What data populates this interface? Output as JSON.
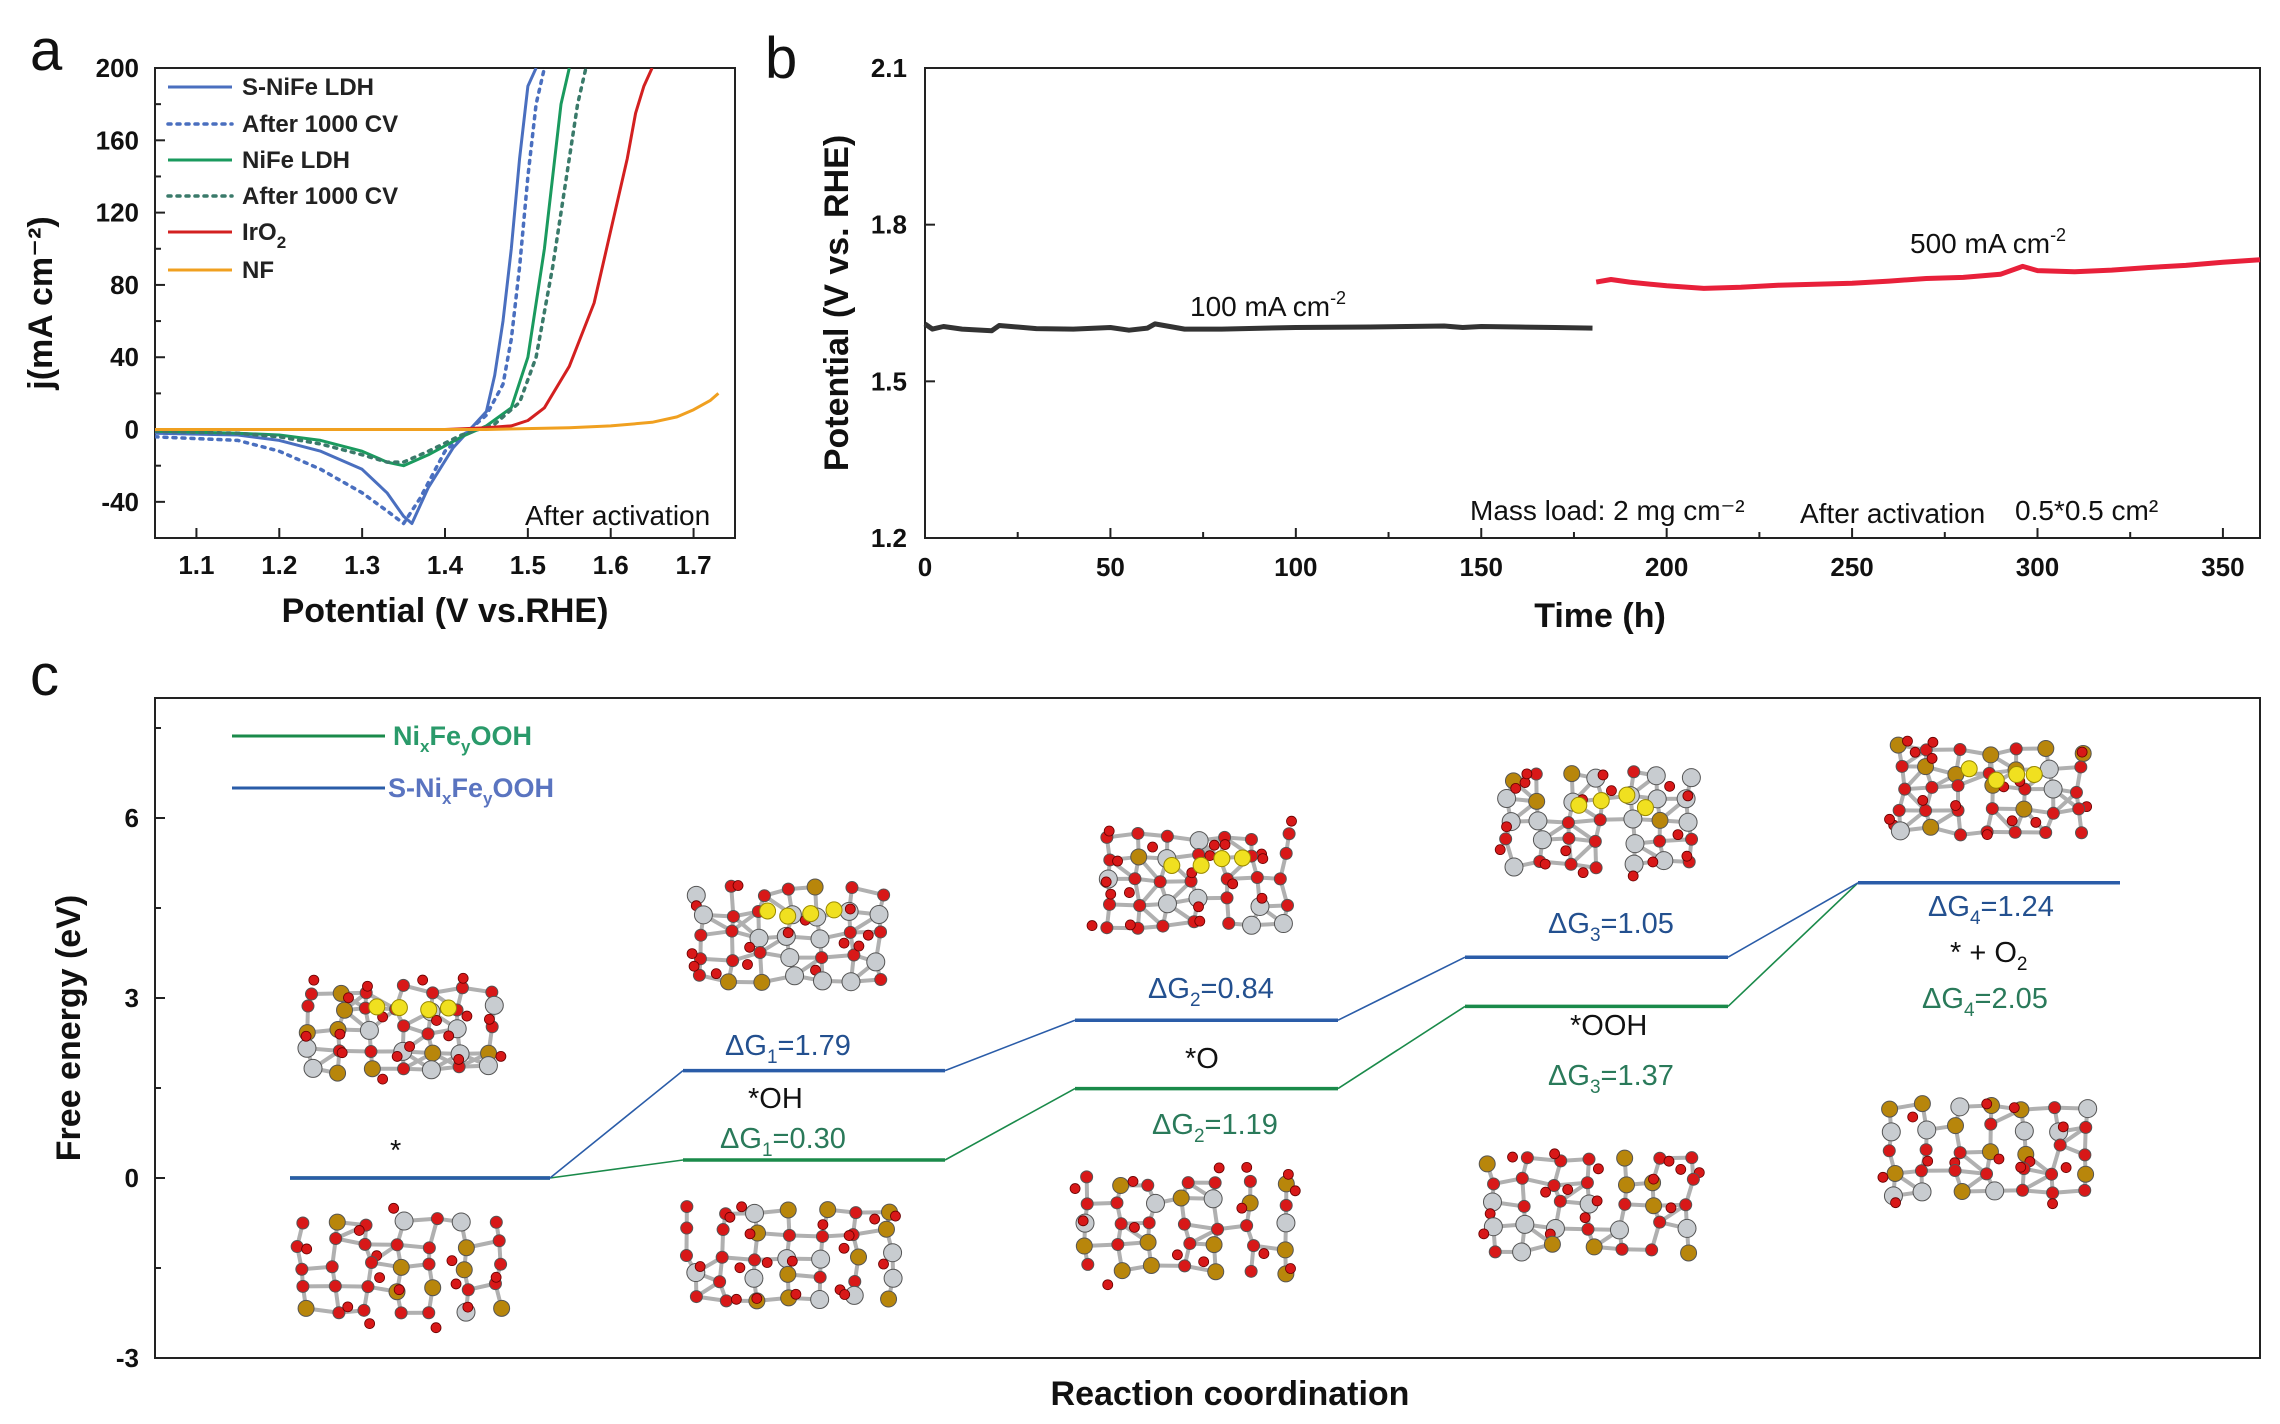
{
  "panels": {
    "a": "a",
    "b": "b",
    "c": "c"
  },
  "colors": {
    "s_nife": "#4a6fbf",
    "nife": "#1a9a5e",
    "iro2": "#d32020",
    "nf": "#f0a020",
    "stability_100": "#333333",
    "stability_500": "#e8203a",
    "energy_ni": "#1a8a4a",
    "energy_s": "#2a5ca8",
    "dg_blue": "#23508f",
    "dg_green": "#2a7a5a",
    "atom_o": "#d81818",
    "atom_ni": "#c8ccd0",
    "atom_fe": "#b8860b",
    "atom_s": "#f0e020"
  },
  "chart_data": [
    {
      "id": "a",
      "type": "line",
      "title": "",
      "xlabel": "Potential (V vs.RHE)",
      "ylabel": "j(mA cm⁻²)",
      "xlim": [
        1.05,
        1.75
      ],
      "ylim": [
        -60,
        200
      ],
      "xticks": [
        1.1,
        1.2,
        1.3,
        1.4,
        1.5,
        1.6,
        1.7
      ],
      "yticks": [
        -40,
        0,
        40,
        80,
        120,
        160,
        200
      ],
      "xtick_labels": [
        "1.1",
        "1.2",
        "1.3",
        "1.4",
        "1.5",
        "1.6",
        "1.7"
      ],
      "ytick_labels": [
        "-40",
        "0",
        "40",
        "80",
        "120",
        "160",
        "200"
      ],
      "annotation": "After activation",
      "legend_position": "top-left",
      "series": [
        {
          "name": "S-NiFe LDH",
          "label_main": "S-NiFe LDH",
          "label_sub": "",
          "style": "solid",
          "color": "#4a6fbf",
          "x": [
            1.05,
            1.15,
            1.2,
            1.25,
            1.3,
            1.33,
            1.35,
            1.36,
            1.38,
            1.41,
            1.43,
            1.45,
            1.46,
            1.47,
            1.48,
            1.49,
            1.5,
            1.51
          ],
          "y": [
            -2,
            -3,
            -6,
            -12,
            -22,
            -35,
            -48,
            -52,
            -32,
            -10,
            0,
            10,
            30,
            60,
            100,
            150,
            190,
            200
          ]
        },
        {
          "name": "After 1000 CV",
          "label_main": "After 1000 CV",
          "label_sub": "",
          "style": "dotted",
          "color": "#4a6fbf",
          "x": [
            1.05,
            1.15,
            1.2,
            1.25,
            1.3,
            1.33,
            1.35,
            1.37,
            1.4,
            1.43,
            1.45,
            1.47,
            1.48,
            1.49,
            1.5,
            1.51,
            1.52
          ],
          "y": [
            -4,
            -6,
            -12,
            -22,
            -35,
            -45,
            -52,
            -38,
            -12,
            0,
            8,
            25,
            50,
            90,
            140,
            180,
            200
          ]
        },
        {
          "name": "NiFe LDH",
          "label_main": "NiFe LDH",
          "label_sub": "",
          "style": "solid",
          "color": "#1a9a5e",
          "x": [
            1.05,
            1.15,
            1.2,
            1.25,
            1.3,
            1.33,
            1.35,
            1.38,
            1.42,
            1.45,
            1.48,
            1.5,
            1.52,
            1.53,
            1.54,
            1.55
          ],
          "y": [
            -1,
            -2,
            -3,
            -6,
            -12,
            -18,
            -20,
            -14,
            -4,
            2,
            12,
            40,
            100,
            140,
            180,
            200
          ]
        },
        {
          "name": "After 1000 CV",
          "label_main": "After 1000 CV",
          "label_sub": "",
          "style": "dotted",
          "color": "#3a7a6a",
          "x": [
            1.05,
            1.15,
            1.2,
            1.25,
            1.3,
            1.33,
            1.35,
            1.38,
            1.42,
            1.46,
            1.49,
            1.51,
            1.53,
            1.55,
            1.56,
            1.57
          ],
          "y": [
            -1,
            -2,
            -4,
            -8,
            -14,
            -18,
            -18,
            -12,
            -3,
            3,
            15,
            40,
            90,
            150,
            180,
            200
          ]
        },
        {
          "name": "IrO2",
          "label_main": "IrO",
          "label_sub": "2",
          "style": "solid",
          "color": "#d32020",
          "x": [
            1.05,
            1.2,
            1.3,
            1.4,
            1.45,
            1.48,
            1.5,
            1.52,
            1.55,
            1.58,
            1.6,
            1.62,
            1.63,
            1.64,
            1.65
          ],
          "y": [
            0,
            0,
            0,
            0,
            1,
            2,
            5,
            12,
            35,
            70,
            110,
            150,
            175,
            190,
            200
          ]
        },
        {
          "name": "NF",
          "label_main": "NF",
          "label_sub": "",
          "style": "solid",
          "color": "#f0a020",
          "x": [
            1.05,
            1.3,
            1.45,
            1.55,
            1.6,
            1.65,
            1.68,
            1.7,
            1.72,
            1.73
          ],
          "y": [
            0,
            0,
            0,
            1,
            2,
            4,
            7,
            11,
            16,
            20
          ]
        }
      ]
    },
    {
      "id": "b",
      "type": "line",
      "title": "",
      "xlabel": "Time (h)",
      "ylabel": "Potential (V vs. RHE)",
      "xlim": [
        0,
        360
      ],
      "ylim": [
        1.2,
        2.1
      ],
      "xticks": [
        0,
        50,
        100,
        150,
        200,
        250,
        300,
        350
      ],
      "yticks": [
        1.2,
        1.5,
        1.8,
        2.1
      ],
      "xtick_labels": [
        "0",
        "50",
        "100",
        "150",
        "200",
        "250",
        "300",
        "350"
      ],
      "ytick_labels": [
        "1.2",
        "1.5",
        "1.8",
        "2.1"
      ],
      "annotations": {
        "mass_load": "Mass load: 2 mg cm⁻²",
        "activation": "After activation",
        "area": "0.5*0.5 cm²"
      },
      "series": [
        {
          "name": "100 mA cm⁻²",
          "label_main": "100 mA cm",
          "label_sup": "-2",
          "color": "#333333",
          "x": [
            0,
            2,
            5,
            10,
            18,
            20,
            30,
            40,
            50,
            55,
            60,
            62,
            70,
            80,
            100,
            120,
            140,
            145,
            150,
            160,
            170,
            180
          ],
          "y": [
            1.61,
            1.6,
            1.605,
            1.6,
            1.597,
            1.607,
            1.601,
            1.6,
            1.603,
            1.598,
            1.602,
            1.61,
            1.6,
            1.6,
            1.603,
            1.604,
            1.606,
            1.603,
            1.605,
            1.604,
            1.603,
            1.602
          ]
        },
        {
          "name": "500 mA cm⁻²",
          "label_main": "500 mA cm",
          "label_sup": "-2",
          "color": "#e8203a",
          "x": [
            181,
            185,
            190,
            200,
            210,
            220,
            230,
            240,
            250,
            260,
            270,
            280,
            290,
            296,
            300,
            310,
            320,
            330,
            340,
            350,
            360
          ],
          "y": [
            1.69,
            1.695,
            1.69,
            1.683,
            1.678,
            1.68,
            1.684,
            1.686,
            1.688,
            1.692,
            1.697,
            1.699,
            1.705,
            1.72,
            1.712,
            1.71,
            1.713,
            1.718,
            1.722,
            1.728,
            1.733
          ]
        }
      ]
    },
    {
      "id": "c",
      "type": "line",
      "title": "",
      "xlabel": "Reaction coordination",
      "ylabel": "Free energy (eV)",
      "ylim": [
        -3,
        8
      ],
      "yticks": [
        -3,
        0,
        3,
        6
      ],
      "ytick_labels": [
        "-3",
        "0",
        "3",
        "6"
      ],
      "legend": [
        {
          "name": "NixFeyOOH",
          "parts": [
            "Ni",
            "x",
            "Fe",
            "y",
            "OOH"
          ],
          "color": "#1a8a4a"
        },
        {
          "name": "S-NixFeyOOH",
          "parts": [
            "S-Ni",
            "x",
            "Fe",
            "y",
            "OOH"
          ],
          "color": "#2a5ca8"
        }
      ],
      "states": [
        "*",
        "*OH",
        "*O",
        "*OOH",
        "* + O₂"
      ],
      "series": [
        {
          "name": "NixFeyOOH",
          "color": "#1a8a4a",
          "levels": [
            0,
            0.3,
            1.49,
            2.86,
            4.92
          ],
          "steps": [
            "ΔG1=0.30",
            "ΔG2=1.19",
            "ΔG3=1.37",
            "ΔG4=2.05"
          ]
        },
        {
          "name": "S-NixFeyOOH",
          "color": "#2a5ca8",
          "levels": [
            0,
            1.79,
            2.63,
            3.68,
            4.92
          ],
          "steps": [
            "ΔG1=1.79",
            "ΔG2=0.84",
            "ΔG3=1.05",
            "ΔG4=1.24"
          ]
        }
      ],
      "dg_labels": {
        "s1": {
          "main": "ΔG",
          "sub": "1",
          "val": "=1.79"
        },
        "n1": {
          "main": "ΔG",
          "sub": "1",
          "val": "=0.30"
        },
        "s2": {
          "main": "ΔG",
          "sub": "2",
          "val": "=0.84"
        },
        "n2": {
          "main": "ΔG",
          "sub": "2",
          "val": "=1.19"
        },
        "s3": {
          "main": "ΔG",
          "sub": "3",
          "val": "=1.05"
        },
        "n3": {
          "main": "ΔG",
          "sub": "3",
          "val": "=1.37"
        },
        "s4": {
          "main": "ΔG",
          "sub": "4",
          "val": "=1.24"
        },
        "n4": {
          "main": "ΔG",
          "sub": "4",
          "val": "=2.05"
        }
      },
      "state_labels": {
        "s0": "*",
        "s1": "*OH",
        "s2": "*O",
        "s3": "*OOH",
        "s4_main": "* + O",
        "s4_sub": "2"
      }
    }
  ]
}
